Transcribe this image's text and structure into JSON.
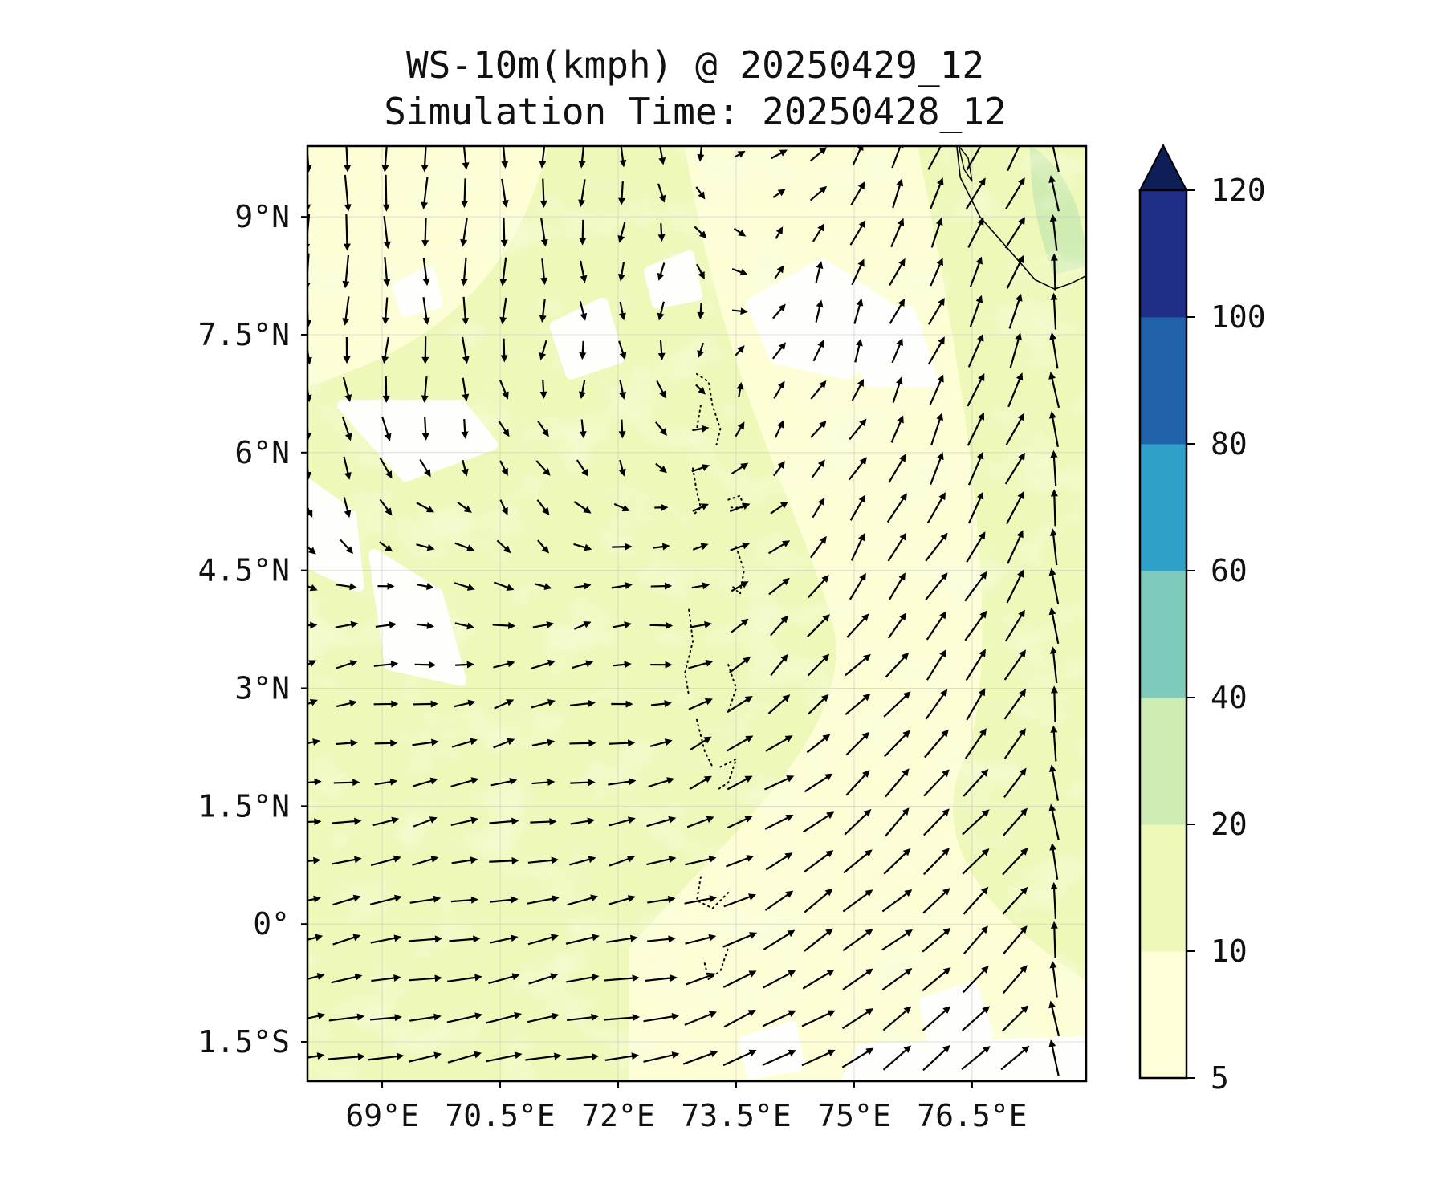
{
  "title": {
    "line1": "WS-10m(kmph) @ 20250429_12",
    "line2": "Simulation Time: 20250428_12"
  },
  "map": {
    "lon_range": [
      68.05,
      77.95
    ],
    "lat_range": [
      -2.0,
      9.9
    ],
    "lat_ticks": [
      {
        "value": 9.0,
        "label": "9°N"
      },
      {
        "value": 7.5,
        "label": "7.5°N"
      },
      {
        "value": 6.0,
        "label": "6°N"
      },
      {
        "value": 4.5,
        "label": "4.5°N"
      },
      {
        "value": 3.0,
        "label": "3°N"
      },
      {
        "value": 1.5,
        "label": "1.5°N"
      },
      {
        "value": 0.0,
        "label": "0°"
      },
      {
        "value": -1.5,
        "label": "1.5°S"
      }
    ],
    "lon_ticks": [
      {
        "value": 69.0,
        "label": "69°E"
      },
      {
        "value": 70.5,
        "label": "70.5°E"
      },
      {
        "value": 72.0,
        "label": "72°E"
      },
      {
        "value": 73.5,
        "label": "73.5°E"
      },
      {
        "value": 75.0,
        "label": "75°E"
      },
      {
        "value": 76.5,
        "label": "76.5°E"
      }
    ],
    "gridlines": true,
    "field_colors": {
      "calm": "#ffffff",
      "5-10": "#fdfed6",
      "10-20": "#edf8b9",
      "20-40": "#d0ecb3"
    }
  },
  "colorbar": {
    "levels": [
      {
        "value": 5,
        "label": "5"
      },
      {
        "value": 10,
        "label": "10"
      },
      {
        "value": 20,
        "label": "20"
      },
      {
        "value": 40,
        "label": "40"
      },
      {
        "value": 60,
        "label": "60"
      },
      {
        "value": 80,
        "label": "80"
      },
      {
        "value": 100,
        "label": "100"
      },
      {
        "value": 120,
        "label": "120"
      }
    ],
    "colors": [
      "#feffd9",
      "#eef8b9",
      "#cfebb4",
      "#7ecbbb",
      "#2fa1c8",
      "#2163ab",
      "#1f2f88"
    ],
    "extend_color": "#0d1f56",
    "extend": "max"
  }
}
